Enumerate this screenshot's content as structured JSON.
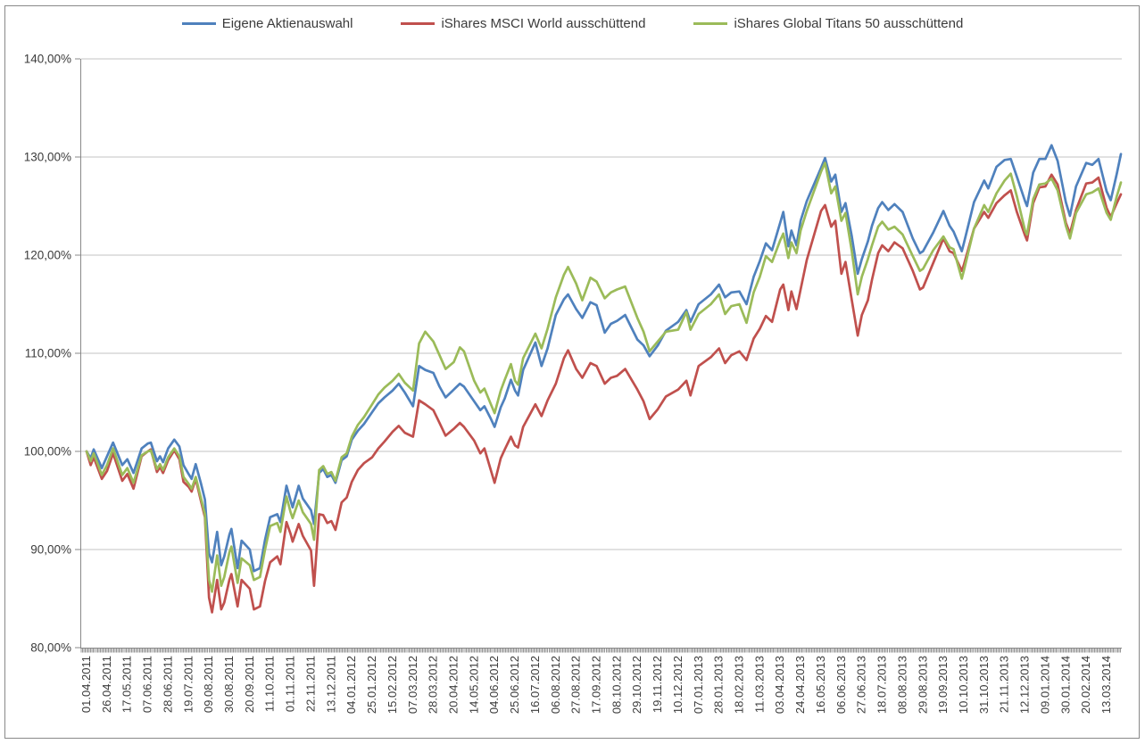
{
  "legend": [
    {
      "label": "Eigene Aktienauswahl",
      "color": "#4F81BD"
    },
    {
      "label": "iShares MSCI World ausschüttend",
      "color": "#C0504D"
    },
    {
      "label": "iShares Global Titans 50 ausschüttend",
      "color": "#9BBB59"
    }
  ],
  "y_axis": {
    "labels": [
      "140,00%",
      "130,00%",
      "120,00%",
      "110,00%",
      "100,00%",
      "90,00%",
      "80,00%"
    ],
    "values": [
      140,
      130,
      120,
      110,
      100,
      90,
      80
    ]
  },
  "x_axis": {
    "labels": [
      "01.04.2011",
      "26.04.2011",
      "17.05.2011",
      "07.06.2011",
      "28.06.2011",
      "19.07.2011",
      "09.08.2011",
      "30.08.2011",
      "20.09.2011",
      "11.10.2011",
      "01.11.2011",
      "22.11.2011",
      "13.12.2011",
      "04.01.2012",
      "25.01.2012",
      "15.02.2012",
      "07.03.2012",
      "28.03.2012",
      "20.04.2012",
      "14.05.2012",
      "04.06.2012",
      "25.06.2012",
      "16.07.2012",
      "06.08.2012",
      "27.08.2012",
      "17.09.2012",
      "08.10.2012",
      "29.10.2012",
      "19.11.2012",
      "10.12.2012",
      "07.01.2013",
      "28.01.2013",
      "18.02.2013",
      "11.03.2013",
      "03.04.2013",
      "24.04.2013",
      "16.05.2013",
      "06.06.2013",
      "27.06.2013",
      "18.07.2013",
      "08.08.2013",
      "29.08.2013",
      "19.09.2013",
      "10.10.2013",
      "31.10.2013",
      "21.11.2013",
      "12.12.2013",
      "09.01.2014",
      "30.01.2014",
      "20.02.2014",
      "13.03.2014"
    ]
  },
  "chart_data": {
    "type": "line",
    "title": "",
    "xlabel": "",
    "ylabel": "",
    "ylim": [
      80,
      140
    ],
    "y_tick_step": 10,
    "grid": "horizontal",
    "legend_position": "top",
    "x_unit": "label-interval index: 0 = 01.04.2011, 1 = 26.04.2011 (one unit = 3 weeks), 50 = 13.03.2014, values in percent of start value",
    "x": [
      0,
      0.2,
      0.35,
      0.75,
      1,
      1.3,
      1.75,
      2,
      2.3,
      2.7,
      3,
      3.15,
      3.45,
      3.6,
      3.75,
      4,
      4.3,
      4.55,
      4.75,
      5,
      5.15,
      5.35,
      5.6,
      5.8,
      6,
      6.15,
      6.4,
      6.6,
      6.75,
      7,
      7.1,
      7.4,
      7.6,
      8,
      8.2,
      8.5,
      8.75,
      9,
      9.35,
      9.5,
      9.8,
      10,
      10.1,
      10.4,
      10.6,
      11,
      11.15,
      11.4,
      11.6,
      11.8,
      12,
      12.2,
      12.5,
      12.75,
      13,
      13.3,
      13.6,
      14,
      14.3,
      14.6,
      15,
      15.3,
      15.6,
      16,
      16.3,
      16.6,
      17,
      17.3,
      17.6,
      18,
      18.3,
      18.5,
      19,
      19.3,
      19.5,
      19.8,
      20,
      20.3,
      20.5,
      20.8,
      21,
      21.15,
      21.4,
      22,
      22.3,
      22.6,
      23,
      23.4,
      23.6,
      24,
      24.3,
      24.7,
      25,
      25.4,
      25.7,
      26,
      26.4,
      27,
      27.3,
      27.6,
      28,
      28.4,
      29,
      29.4,
      29.6,
      30,
      30.6,
      31,
      31.3,
      31.6,
      32,
      32.35,
      32.7,
      33,
      33.3,
      33.6,
      34,
      34.15,
      34.4,
      34.55,
      34.8,
      35,
      35.3,
      36,
      36.2,
      36.5,
      36.7,
      37,
      37.2,
      37.5,
      37.8,
      38,
      38.3,
      38.5,
      38.8,
      39,
      39.3,
      39.6,
      40,
      40.5,
      40.85,
      41,
      41.5,
      42,
      42.3,
      42.5,
      42.9,
      43,
      43.5,
      44,
      44.2,
      44.6,
      45,
      45.3,
      45.6,
      46,
      46.1,
      46.4,
      46.7,
      47,
      47.3,
      47.6,
      48,
      48.2,
      48.5,
      49,
      49.3,
      49.6,
      50,
      50.2,
      50.5,
      50.7
    ],
    "series": [
      {
        "name": "Eigene Aktienauswahl",
        "color": "#4F81BD",
        "values": [
          100.0,
          99.3,
          100.2,
          98.3,
          99.5,
          100.9,
          98.6,
          99.2,
          97.8,
          100.3,
          100.8,
          100.9,
          99.0,
          99.5,
          98.9,
          100.3,
          101.2,
          100.5,
          98.6,
          97.7,
          97.2,
          98.7,
          96.8,
          95.1,
          89.6,
          88.7,
          91.8,
          88.4,
          89.3,
          91.5,
          92.1,
          88.1,
          90.9,
          90.0,
          87.8,
          88.1,
          91.0,
          93.3,
          93.6,
          92.8,
          96.5,
          95.0,
          94.3,
          96.5,
          95.2,
          94.0,
          92.6,
          97.8,
          98.2,
          97.4,
          97.6,
          96.8,
          99.1,
          99.5,
          101.2,
          102.1,
          102.8,
          104.0,
          104.9,
          105.5,
          106.2,
          106.9,
          106.0,
          104.6,
          108.7,
          108.3,
          108.0,
          106.6,
          105.5,
          106.3,
          106.9,
          106.6,
          105.1,
          104.2,
          104.6,
          103.4,
          102.5,
          104.5,
          105.4,
          107.3,
          106.2,
          105.7,
          108.3,
          111.1,
          108.7,
          110.5,
          113.9,
          115.5,
          116.0,
          114.5,
          113.6,
          115.2,
          114.9,
          112.1,
          113.0,
          113.3,
          113.9,
          111.4,
          110.8,
          109.7,
          110.8,
          112.3,
          113.2,
          114.4,
          113.2,
          115.0,
          116.0,
          117.0,
          115.7,
          116.2,
          116.3,
          115.0,
          117.8,
          119.4,
          121.2,
          120.5,
          123.3,
          124.4,
          120.9,
          122.5,
          121.0,
          123.5,
          125.5,
          128.9,
          129.9,
          127.5,
          128.2,
          124.4,
          125.3,
          122.0,
          118.1,
          119.6,
          121.4,
          123.0,
          124.8,
          125.4,
          124.6,
          125.2,
          124.4,
          121.7,
          120.2,
          120.4,
          122.3,
          124.5,
          123.0,
          122.4,
          120.4,
          121.2,
          125.4,
          127.6,
          126.8,
          129.0,
          129.7,
          129.8,
          128.0,
          125.5,
          125.0,
          128.4,
          129.8,
          129.8,
          131.2,
          129.6,
          125.4,
          124.0,
          127.0,
          129.4,
          129.2,
          129.8,
          126.5,
          125.6,
          128.3,
          130.3
        ]
      },
      {
        "name": "iShares MSCI World ausschüttend",
        "color": "#C0504D",
        "values": [
          100.0,
          98.6,
          99.4,
          97.2,
          98.0,
          99.8,
          97.0,
          97.7,
          96.2,
          99.5,
          100.0,
          100.2,
          97.9,
          98.4,
          97.8,
          99.1,
          100.1,
          99.2,
          96.9,
          96.4,
          95.9,
          97.2,
          95.0,
          93.3,
          85.1,
          83.6,
          86.9,
          83.9,
          84.6,
          86.9,
          87.5,
          84.2,
          86.9,
          86.0,
          83.9,
          84.2,
          86.8,
          88.7,
          89.3,
          88.5,
          92.8,
          91.6,
          90.8,
          92.6,
          91.4,
          89.9,
          86.3,
          93.6,
          93.5,
          92.7,
          92.9,
          92.0,
          94.8,
          95.3,
          96.9,
          98.1,
          98.8,
          99.4,
          100.3,
          101.0,
          102.0,
          102.6,
          101.9,
          101.5,
          105.2,
          104.8,
          104.2,
          102.9,
          101.6,
          102.3,
          102.9,
          102.5,
          101.1,
          99.8,
          100.3,
          98.2,
          96.8,
          99.3,
          100.2,
          101.5,
          100.6,
          100.4,
          102.5,
          104.8,
          103.6,
          105.2,
          106.9,
          109.5,
          110.3,
          108.4,
          107.5,
          109.0,
          108.7,
          106.9,
          107.5,
          107.7,
          108.4,
          106.3,
          105.1,
          103.3,
          104.3,
          105.6,
          106.3,
          107.2,
          105.7,
          108.7,
          109.6,
          110.5,
          109.0,
          109.8,
          110.2,
          109.3,
          111.5,
          112.5,
          113.8,
          113.2,
          116.5,
          117.0,
          114.4,
          116.3,
          114.5,
          116.5,
          119.5,
          124.5,
          125.1,
          122.9,
          123.5,
          118.1,
          119.3,
          115.5,
          111.8,
          113.9,
          115.4,
          117.5,
          120.2,
          121.0,
          120.4,
          121.3,
          120.7,
          118.4,
          116.5,
          116.7,
          119.2,
          121.7,
          120.4,
          120.2,
          118.4,
          119.0,
          122.7,
          124.4,
          123.8,
          125.3,
          126.1,
          126.6,
          124.4,
          122.0,
          121.5,
          125.3,
          126.9,
          127.0,
          128.2,
          127.2,
          123.3,
          122.2,
          124.6,
          127.3,
          127.4,
          127.9,
          124.8,
          123.9,
          125.3,
          126.2
        ]
      },
      {
        "name": "iShares Global Titans 50 ausschüttend",
        "color": "#9BBB59",
        "values": [
          100.0,
          99.0,
          99.8,
          97.6,
          98.6,
          100.3,
          97.6,
          98.3,
          96.8,
          99.6,
          100.0,
          100.1,
          98.2,
          98.7,
          98.1,
          99.4,
          100.3,
          99.5,
          97.4,
          96.7,
          96.2,
          97.4,
          95.3,
          93.6,
          86.9,
          85.7,
          89.4,
          86.3,
          87.2,
          89.7,
          90.3,
          86.6,
          89.1,
          88.4,
          86.9,
          87.2,
          90.0,
          92.4,
          92.7,
          91.8,
          95.4,
          93.8,
          93.2,
          95.0,
          93.8,
          92.6,
          91.0,
          98.1,
          98.5,
          97.7,
          97.9,
          97.0,
          99.4,
          99.8,
          101.5,
          102.7,
          103.5,
          104.8,
          105.8,
          106.5,
          107.2,
          107.9,
          107.0,
          106.2,
          111.0,
          112.2,
          111.2,
          109.8,
          108.4,
          109.1,
          110.6,
          110.2,
          107.2,
          106.0,
          106.4,
          104.9,
          103.9,
          106.2,
          107.3,
          108.9,
          107.2,
          106.8,
          109.5,
          112.0,
          110.5,
          112.5,
          115.7,
          118.0,
          118.8,
          117.1,
          115.4,
          117.7,
          117.3,
          115.6,
          116.2,
          116.5,
          116.8,
          113.6,
          112.2,
          110.2,
          111.2,
          112.2,
          112.4,
          114.2,
          112.4,
          114.0,
          115.0,
          116.0,
          114.0,
          114.8,
          115.0,
          113.1,
          116.2,
          117.8,
          119.9,
          119.3,
          121.5,
          122.2,
          119.7,
          121.3,
          120.2,
          122.5,
          124.5,
          128.5,
          129.4,
          126.3,
          127.0,
          123.5,
          124.3,
          120.5,
          116.0,
          117.8,
          119.6,
          121.0,
          122.9,
          123.4,
          122.6,
          122.9,
          122.1,
          119.9,
          118.4,
          118.6,
          120.5,
          121.9,
          120.8,
          120.6,
          117.6,
          118.4,
          122.7,
          125.1,
          124.4,
          126.3,
          127.6,
          128.3,
          126.0,
          122.5,
          122.1,
          125.7,
          127.2,
          127.3,
          127.8,
          126.6,
          123.0,
          121.7,
          124.3,
          126.2,
          126.4,
          126.8,
          124.3,
          123.6,
          126.0,
          127.4
        ]
      }
    ]
  }
}
